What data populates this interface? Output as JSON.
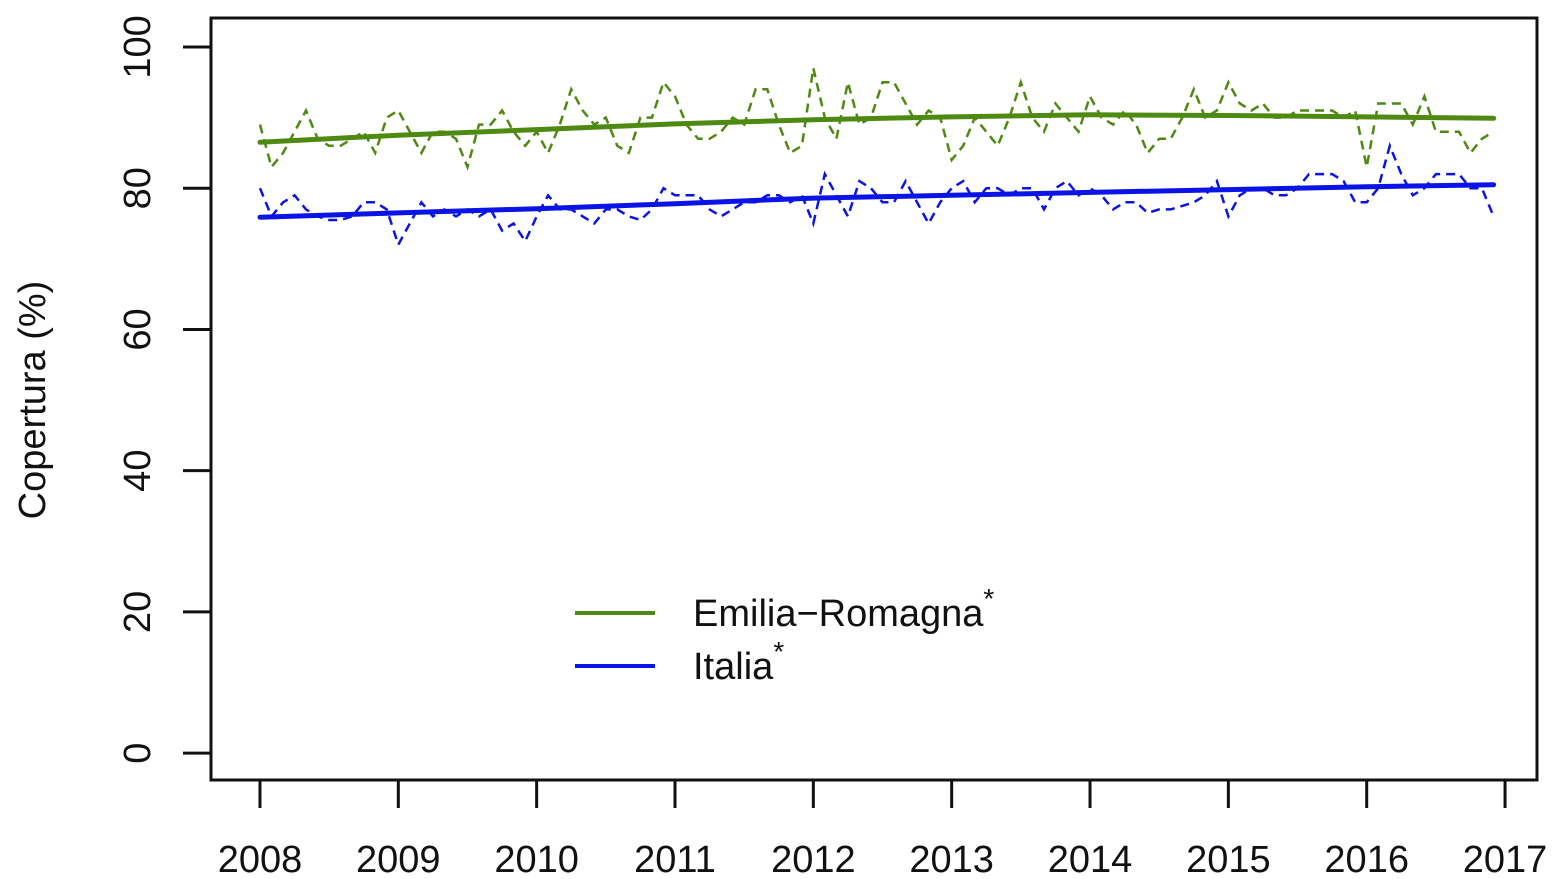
{
  "chart_data": {
    "type": "line",
    "ylabel": "Copertura (%)",
    "xlim": [
      2007.646,
      2017.231
    ],
    "ylim": [
      -3.8,
      104.1
    ],
    "xticks": [
      2008,
      2009,
      2010,
      2011,
      2012,
      2013,
      2014,
      2015,
      2016,
      2017
    ],
    "yticks": [
      0,
      20,
      40,
      60,
      80,
      100
    ],
    "legend_position": "bottom-center",
    "x": [
      2008,
      2008.083,
      2008.167,
      2008.25,
      2008.333,
      2008.417,
      2008.5,
      2008.583,
      2008.667,
      2008.75,
      2008.833,
      2008.917,
      2009,
      2009.083,
      2009.167,
      2009.25,
      2009.333,
      2009.417,
      2009.5,
      2009.583,
      2009.667,
      2009.75,
      2009.833,
      2009.917,
      2010,
      2010.083,
      2010.167,
      2010.25,
      2010.333,
      2010.417,
      2010.5,
      2010.583,
      2010.667,
      2010.75,
      2010.833,
      2010.917,
      2011,
      2011.083,
      2011.167,
      2011.25,
      2011.333,
      2011.417,
      2011.5,
      2011.583,
      2011.667,
      2011.75,
      2011.833,
      2011.917,
      2012,
      2012.083,
      2012.167,
      2012.25,
      2012.333,
      2012.417,
      2012.5,
      2012.583,
      2012.667,
      2012.75,
      2012.833,
      2012.917,
      2013,
      2013.083,
      2013.167,
      2013.25,
      2013.333,
      2013.417,
      2013.5,
      2013.583,
      2013.667,
      2013.75,
      2013.833,
      2013.917,
      2014,
      2014.083,
      2014.167,
      2014.25,
      2014.333,
      2014.417,
      2014.5,
      2014.583,
      2014.667,
      2014.75,
      2014.833,
      2014.917,
      2015,
      2015.083,
      2015.167,
      2015.25,
      2015.333,
      2015.417,
      2015.5,
      2015.583,
      2015.667,
      2015.75,
      2015.833,
      2015.917,
      2016,
      2016.083,
      2016.167,
      2016.25,
      2016.333,
      2016.417,
      2016.5,
      2016.583,
      2016.667,
      2016.75,
      2016.833,
      2016.917
    ],
    "trend_x": [
      2008,
      2009,
      2010,
      2011,
      2012,
      2013,
      2014,
      2015,
      2016,
      2016.917
    ],
    "series": [
      {
        "name": "Emilia−Romagna",
        "note_mark": "*",
        "color": "#4e8a12",
        "values": [
          89,
          83,
          85,
          88,
          91,
          87,
          86,
          86,
          87,
          88,
          85,
          90,
          91,
          88,
          85,
          88,
          88,
          87,
          83,
          89,
          89,
          91,
          88,
          86,
          88,
          85,
          89,
          94,
          91,
          89,
          90,
          86,
          85,
          90,
          90,
          95,
          93,
          89,
          87,
          87,
          88,
          90,
          89,
          94,
          94,
          89,
          85,
          86,
          97,
          90,
          87,
          95,
          89,
          90,
          95,
          95,
          92,
          89,
          91,
          90,
          84,
          86,
          90,
          88,
          86,
          90,
          95,
          90,
          88,
          92,
          90,
          88,
          93,
          90,
          89,
          91,
          89,
          85,
          87,
          87,
          90,
          94,
          90,
          91,
          95,
          92,
          91,
          92,
          90,
          90,
          91,
          91,
          91,
          91,
          90,
          91,
          83,
          92,
          92,
          92,
          89,
          93,
          88,
          88,
          88,
          85,
          87,
          88
        ],
        "trend": [
          86.5,
          87.5,
          88.3,
          89.1,
          89.7,
          90.1,
          90.4,
          90.3,
          90.1,
          89.9
        ]
      },
      {
        "name": "Italia",
        "note_mark": "*",
        "color": "#0a14e6",
        "values": [
          80,
          76,
          78,
          79,
          77,
          76,
          75.5,
          75.5,
          76,
          78,
          78,
          77,
          72,
          75,
          78,
          76,
          77,
          76,
          77,
          76,
          77,
          74,
          75,
          72.5,
          76,
          79,
          77,
          77,
          76,
          75,
          77,
          77,
          76,
          75.5,
          77,
          80,
          79,
          79,
          79,
          77,
          76,
          77,
          78,
          78,
          79,
          79,
          78,
          79,
          75,
          82,
          79,
          76,
          81,
          80,
          78,
          78,
          81,
          78,
          75,
          78,
          80,
          81,
          78,
          80,
          80,
          79,
          80,
          80,
          77,
          80,
          81,
          79,
          80,
          79,
          77,
          78,
          78,
          76.5,
          77,
          77,
          77.5,
          78,
          79,
          81,
          76,
          79,
          80,
          80,
          79,
          79,
          80,
          82,
          82,
          82,
          81,
          78,
          78,
          80,
          86,
          82,
          79,
          80,
          82,
          82,
          82,
          80,
          80,
          76
        ],
        "trend": [
          75.9,
          76.5,
          77.1,
          77.8,
          78.6,
          79.0,
          79.4,
          79.8,
          80.2,
          80.5
        ]
      }
    ]
  }
}
